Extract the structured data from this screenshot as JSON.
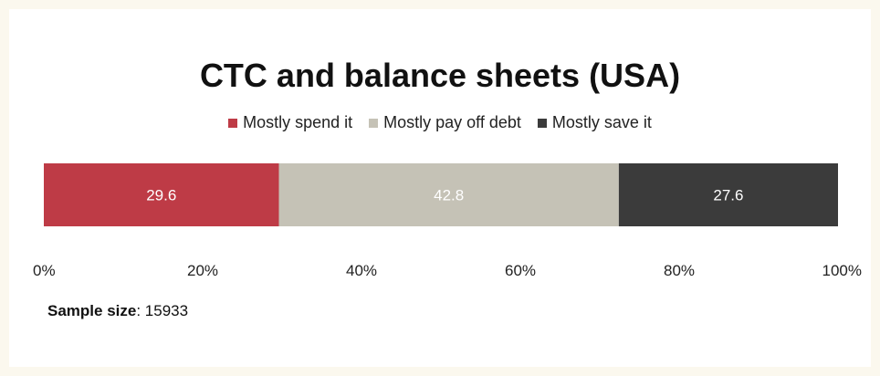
{
  "chart_data": {
    "type": "bar",
    "orientation": "horizontal-stacked",
    "title": "CTC and balance sheets (USA)",
    "legend_position": "top",
    "series": [
      {
        "name": "Mostly spend it",
        "value": 29.6,
        "label": "29.6",
        "color": "#be3b46"
      },
      {
        "name": "Mostly pay off debt",
        "value": 42.8,
        "label": "42.8",
        "color": "#c5c2b6"
      },
      {
        "name": "Mostly save it",
        "value": 27.6,
        "label": "27.6",
        "color": "#3b3b3b"
      }
    ],
    "xlim": [
      0,
      100
    ],
    "x_ticks": [
      0,
      20,
      40,
      60,
      80,
      100
    ],
    "x_tick_labels": [
      "0%",
      "20%",
      "40%",
      "60%",
      "80%",
      "100%"
    ],
    "grid": false
  },
  "footer": {
    "sample_label": "Sample size",
    "sample_value": "15933"
  }
}
